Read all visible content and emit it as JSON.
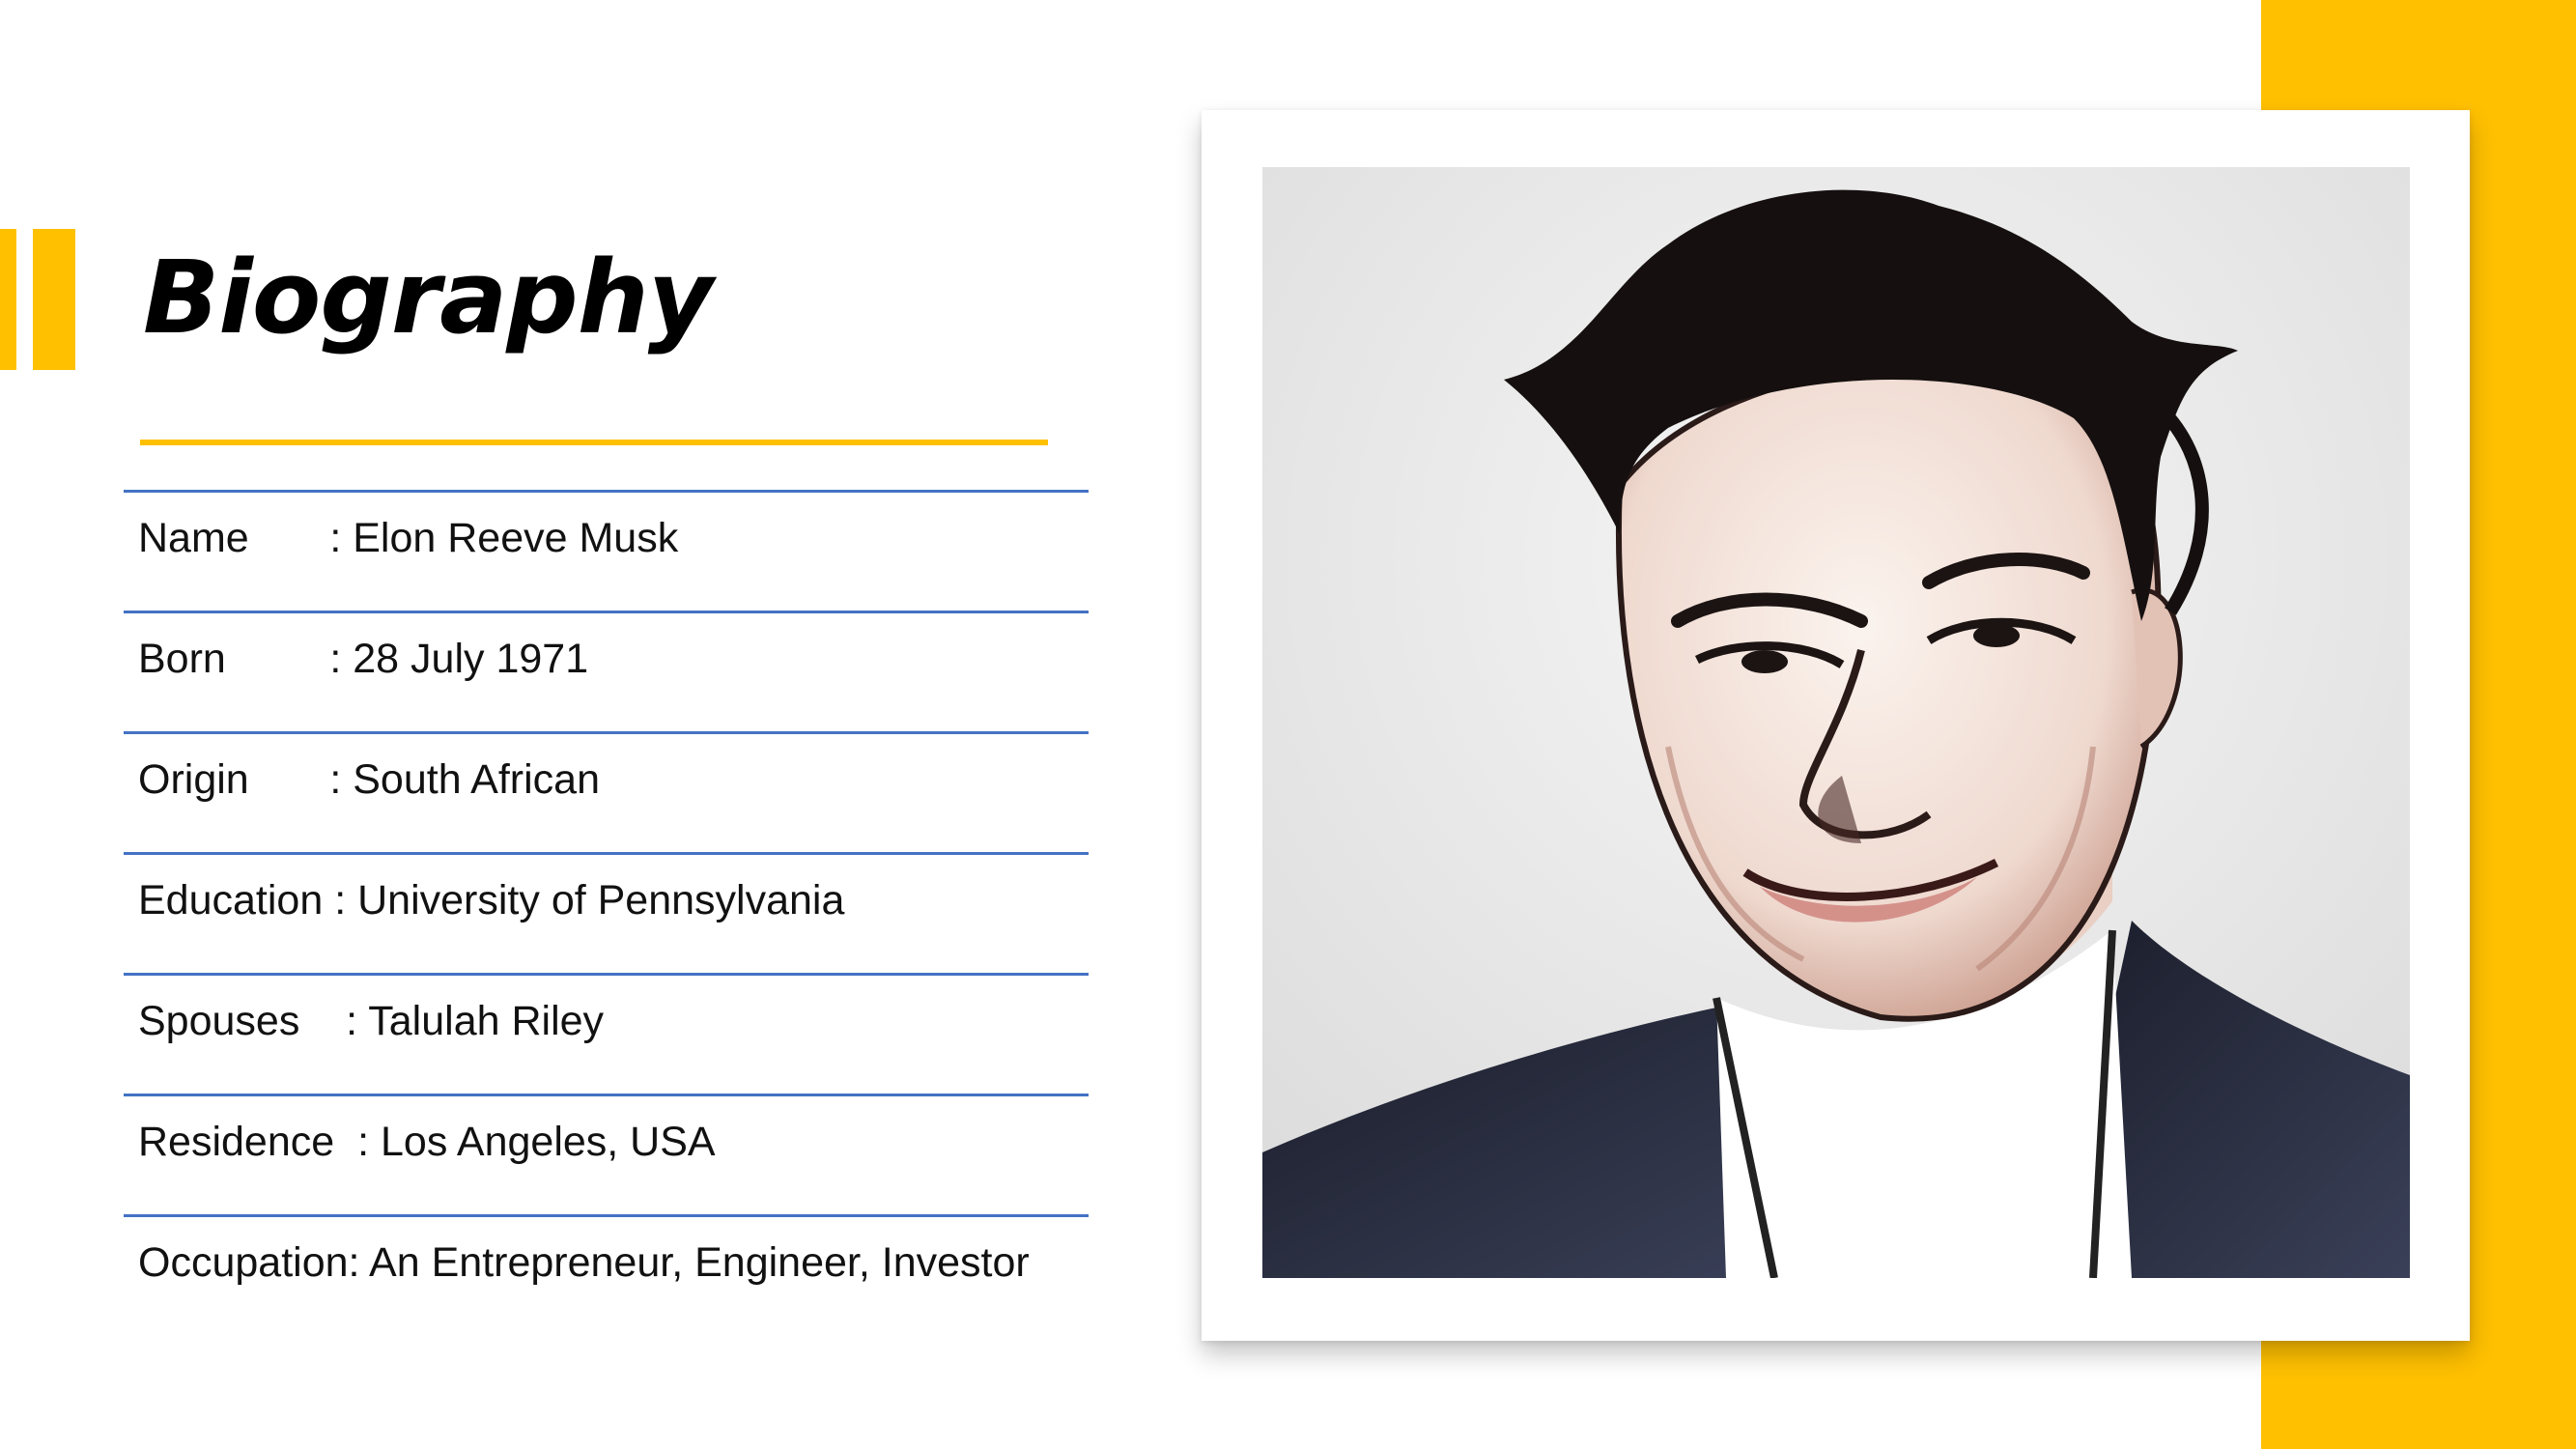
{
  "slide": {
    "title": "Biography",
    "accent_color": "#FFC000",
    "rule_color": "#4472C4"
  },
  "bio": {
    "rows": [
      {
        "label": "Name",
        "gap": "       ",
        "value": ": Elon Reeve Musk"
      },
      {
        "label": "Born",
        "gap": "         ",
        "value": ": 28 July 1971"
      },
      {
        "label": "Origin",
        "gap": "       ",
        "value": ": South African"
      },
      {
        "label": "Education",
        "gap": " ",
        "value": ": University of Pennsylvania"
      },
      {
        "label": "Spouses",
        "gap": "    ",
        "value": ": Talulah Riley"
      },
      {
        "label": "Residence",
        "gap": "  ",
        "value": ": Los Angeles, USA"
      },
      {
        "label": "Occupation",
        "gap": "",
        "value": ": An Entrepreneur, Engineer, Investor"
      }
    ]
  },
  "photo": {
    "subject": "portrait-illustration"
  }
}
